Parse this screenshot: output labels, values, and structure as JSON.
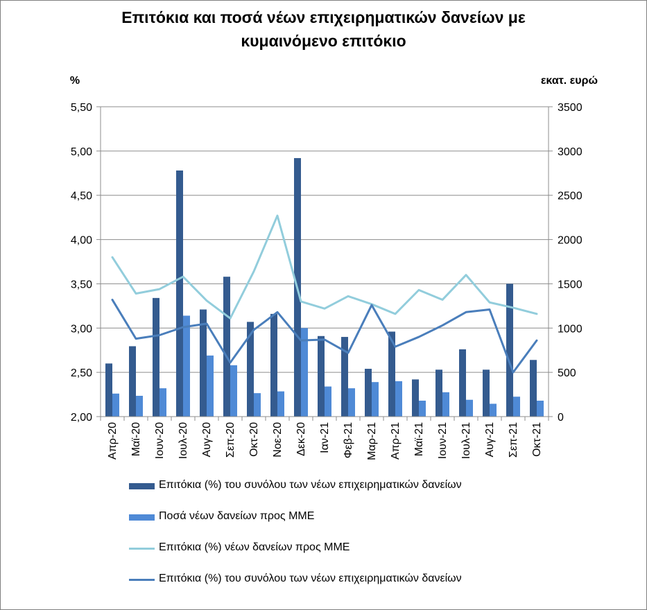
{
  "chart_data": {
    "type": "bar",
    "title_line1": "Επιτόκια και ποσά νέων επιχειρηματικών  δανείων με",
    "title_line2": "κυμαινόμενο επιτόκιο",
    "y_left_label": "%",
    "y_right_label": "εκατ. ευρώ",
    "y_left_lim": [
      2.0,
      5.5
    ],
    "y_right_lim": [
      0,
      3500
    ],
    "y_left_ticks": [
      "2,00",
      "2,50",
      "3,00",
      "3,50",
      "4,00",
      "4,50",
      "5,00",
      "5,50"
    ],
    "y_right_ticks": [
      "0",
      "500",
      "1000",
      "1500",
      "2000",
      "2500",
      "3000",
      "3500"
    ],
    "categories": [
      "Απρ-20",
      "Μαϊ-20",
      "Ιουν-20",
      "Ιουλ-20",
      "Αυγ-20",
      "Σεπ-20",
      "Οκτ-20",
      "Νοε-20",
      "Δεκ-20",
      "Ιαν-21",
      "Φεβ-21",
      "Μαρ-21",
      "Απρ-21",
      "Μαϊ-21",
      "Ιουν-21",
      "Ιουλ-21",
      "Αυγ-21",
      "Σεπ-21",
      "Οκτ-21"
    ],
    "grid": true,
    "legend_position": "bottom",
    "series": [
      {
        "name": "Επιτόκια (%) του συνόλου των νέων επιχειρηματικών δανείων",
        "kind": "bar",
        "axis": "right",
        "color": "#345b8f",
        "values": [
          600,
          795,
          1340,
          2780,
          1210,
          1580,
          1070,
          1160,
          2920,
          910,
          900,
          540,
          960,
          420,
          530,
          760,
          530,
          1500,
          640
        ]
      },
      {
        "name": "Ποσά νέων δανείων προς ΜΜΕ",
        "kind": "bar",
        "axis": "right",
        "color": "#4f8ad6",
        "values": [
          260,
          235,
          320,
          1140,
          690,
          580,
          265,
          285,
          1000,
          340,
          320,
          390,
          400,
          180,
          275,
          190,
          145,
          225,
          180
        ]
      },
      {
        "name": "Επιτόκια (%) νέων δανείων προς ΜΜΕ",
        "kind": "line",
        "axis": "left",
        "color": "#92cddc",
        "values": [
          3.8,
          3.39,
          3.44,
          3.58,
          3.31,
          3.11,
          3.64,
          4.27,
          3.3,
          3.22,
          3.36,
          3.27,
          3.16,
          3.43,
          3.32,
          3.6,
          3.29,
          3.23,
          3.16
        ]
      },
      {
        "name": "Επιτόκια (%) του συνόλου των νέων επιχειρηματικών δανείων",
        "kind": "line",
        "axis": "left",
        "color": "#4a7ebb",
        "values": [
          3.32,
          2.88,
          2.92,
          3.01,
          3.05,
          2.61,
          2.98,
          3.18,
          2.86,
          2.87,
          2.72,
          3.26,
          2.79,
          2.9,
          3.03,
          3.18,
          3.21,
          2.5,
          2.86
        ]
      }
    ]
  }
}
